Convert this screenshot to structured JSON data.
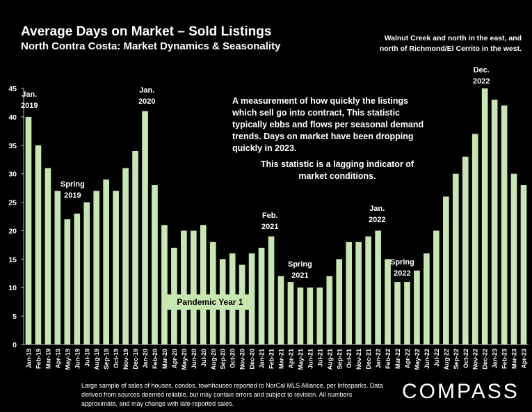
{
  "header": {
    "title": "Average Days on Market – Sold Listings",
    "subtitle": "North Contra Costa: Market Dynamics & Seasonality",
    "region_note_line1": "Walnut Creek and north in the east, and",
    "region_note_line2": "north of Richmond/El Cerrito in the west."
  },
  "annotations": {
    "description": "A measurement of how quickly the listings which sell go into contract, This statistic typically ebbs and flows per seasonal demand trends. Days on market have been dropping quickly in 2023.",
    "lagging": "This statistic is a lagging indicator of market conditions.",
    "pandemic": "Pandemic Year 1",
    "jan2019": "Jan.\n2019",
    "spring2019": "Spring\n2019",
    "jan2020": "Jan.\n2020",
    "feb2021": "Feb.\n2021",
    "spring2021": "Spring\n2021",
    "jan2022": "Jan.\n2022",
    "spring2022": "Spring\n2022",
    "dec2022": "Dec.\n2022"
  },
  "footer": {
    "note": "Large sample of sales of houses, condos, townhouses reported to NorCal MLS Alliance, per Infosparks. Data derived from sources deemed reliable, but may contain errors and subject to revision. All numbers approximate, and may change with late-reported sales.",
    "logo": "COMPASS"
  },
  "colors": {
    "bar": "#c7e6b0",
    "background": "#000000",
    "text": "#ffffff"
  },
  "chart_data": {
    "type": "bar",
    "title": "Average Days on Market – Sold Listings",
    "ylim": [
      0,
      45
    ],
    "yticks": [
      0,
      5,
      10,
      15,
      20,
      25,
      30,
      35,
      40,
      45
    ],
    "grid": false,
    "categories": [
      "Jan-19",
      "Feb-19",
      "Mar-19",
      "Apr-19",
      "May-19",
      "Jun-19",
      "Jul-19",
      "Aug-19",
      "Sep-19",
      "Oct-19",
      "Nov-19",
      "Dec-19",
      "Jan-20",
      "Feb-20",
      "Mar-20",
      "Apr-20",
      "May-20",
      "Jun-20",
      "Jul-20",
      "Aug-20",
      "Sep-20",
      "Oct-20",
      "Nov-20",
      "Dec-20",
      "Jan-21",
      "Feb-21",
      "Mar-21",
      "Apr-21",
      "May-21",
      "Jun-21",
      "Jul-21",
      "Aug-21",
      "Sep-21",
      "Oct-21",
      "Nov-21",
      "Dec-21",
      "Jan-22",
      "Feb-22",
      "Mar-22",
      "Apr-22",
      "May-22",
      "Jun-22",
      "Jul-22",
      "Aug-22",
      "Sep-22",
      "Oct-22",
      "Nov-22",
      "Dec-22",
      "Jan-23",
      "Feb-23",
      "Mar-23",
      "Apr-23"
    ],
    "values": [
      40,
      35,
      31,
      27,
      22,
      23,
      25,
      27,
      29,
      27,
      31,
      34,
      41,
      28,
      21,
      17,
      20,
      20,
      21,
      18,
      15,
      16,
      14,
      16,
      17,
      19,
      12,
      11,
      10,
      10,
      10,
      12,
      15,
      18,
      18,
      19,
      20,
      15,
      11,
      11,
      13,
      16,
      20,
      26,
      30,
      33,
      37,
      45,
      43,
      42,
      30,
      28
    ]
  }
}
